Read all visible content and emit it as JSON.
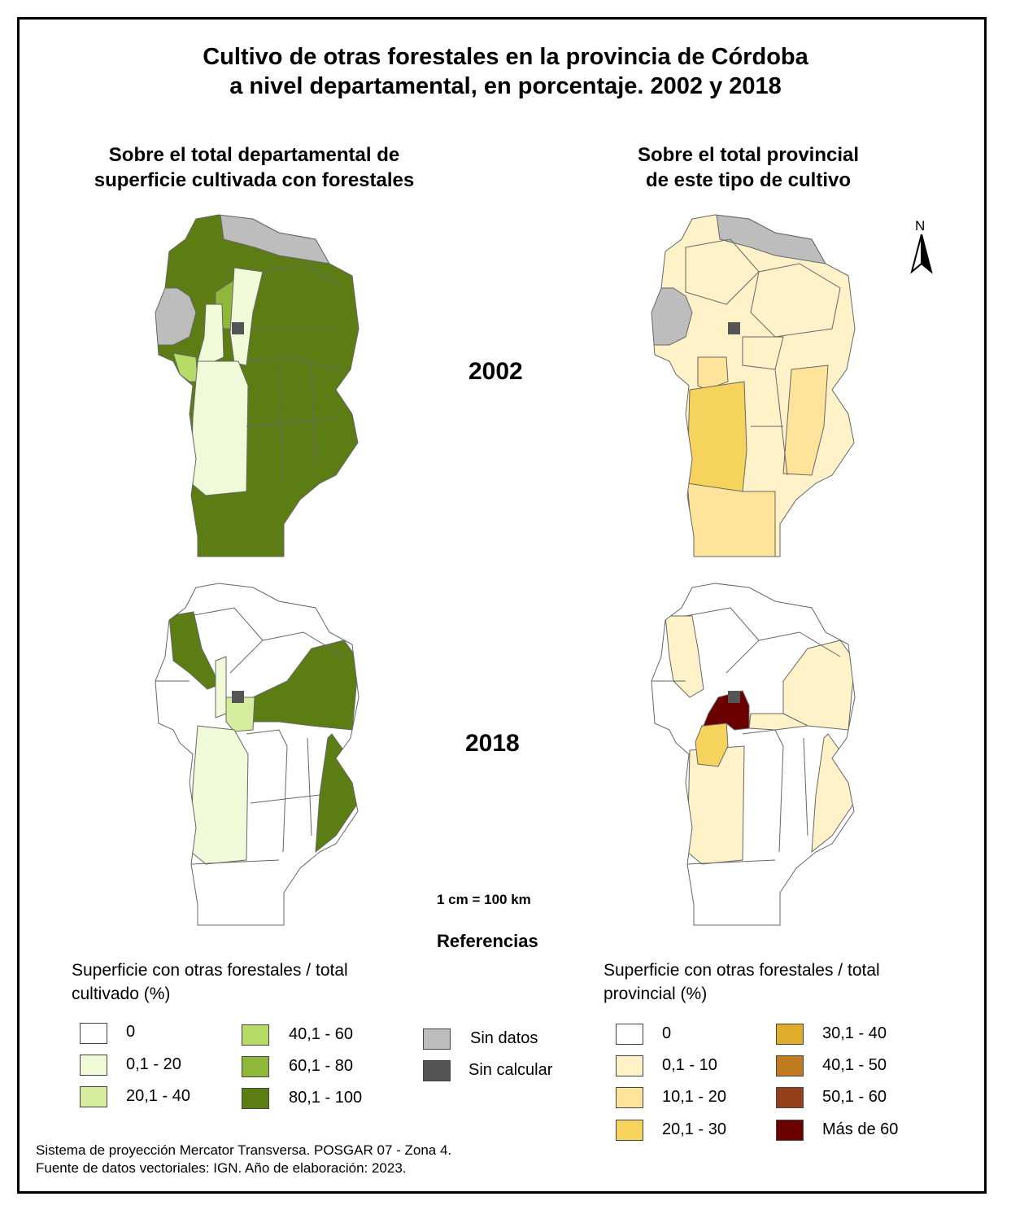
{
  "title": {
    "line1": "Cultivo de otras forestales en la provincia de Córdoba",
    "line2": "a nivel departamental, en porcentaje. 2002 y 2018"
  },
  "columns": {
    "left": {
      "line1": "Sobre el total departamental de",
      "line2": "superficie cultivada con forestales"
    },
    "right": {
      "line1": "Sobre el total provincial",
      "line2": "de este tipo de cultivo"
    }
  },
  "years": {
    "y2002": "2002",
    "y2018": "2018"
  },
  "north_label": "N",
  "scale": "1 cm = 100 km",
  "references_title": "Referencias",
  "legend_left": {
    "title_line1": "Superficie con otras forestales / total",
    "title_line2": "cultivado (%)",
    "items": [
      {
        "label": "0",
        "color": "#ffffff"
      },
      {
        "label": "0,1 - 20",
        "color": "#f0f9d8"
      },
      {
        "label": "20,1 - 40",
        "color": "#d6ec9e"
      },
      {
        "label": "40,1 - 60",
        "color": "#b6dc67"
      },
      {
        "label": "60,1 - 80",
        "color": "#8fb73a"
      },
      {
        "label": "80,1 - 100",
        "color": "#5c7d13"
      }
    ]
  },
  "legend_special": [
    {
      "label": "Sin datos",
      "color": "#bdbdbd"
    },
    {
      "label": "Sin calcular",
      "color": "#555555"
    }
  ],
  "legend_right": {
    "title_line1": "Superficie con otras forestales / total",
    "title_line2": "provincial (%)",
    "items": [
      {
        "label": "0",
        "color": "#ffffff"
      },
      {
        "label": "0,1 - 10",
        "color": "#fff2c8"
      },
      {
        "label": "10,1 - 20",
        "color": "#fde49a"
      },
      {
        "label": "20,1 - 30",
        "color": "#f6d35c"
      },
      {
        "label": "30,1 - 40",
        "color": "#e0ad2a"
      },
      {
        "label": "40,1 - 50",
        "color": "#c07a20"
      },
      {
        "label": "50,1 - 60",
        "color": "#95401a"
      },
      {
        "label": "Más de 60",
        "color": "#6b0000"
      }
    ]
  },
  "footer": {
    "line1": "Sistema de proyección Mercator Transversa. POSGAR 07 - Zona 4.",
    "line2": "Fuente de datos vectoriales: IGN. Año de elaboración: 2023."
  }
}
